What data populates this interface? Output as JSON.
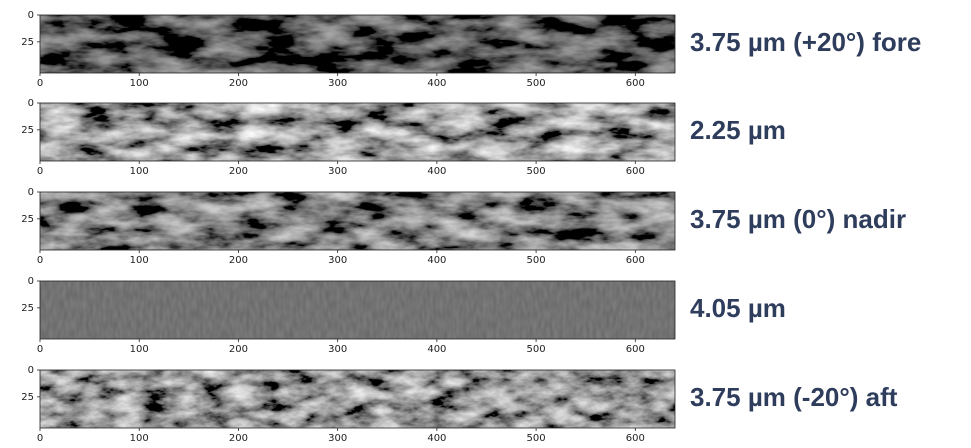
{
  "chart_data": [
    {
      "type": "image",
      "title": "3.75 µm (+20°) fore",
      "xlim": [
        0,
        640
      ],
      "ylim": [
        54,
        0
      ],
      "xticks": [
        0,
        100,
        200,
        300,
        400,
        500,
        600
      ],
      "yticks": [
        0,
        25
      ]
    },
    {
      "type": "image",
      "title": "2.25 µm",
      "xlim": [
        0,
        640
      ],
      "ylim": [
        54,
        0
      ],
      "xticks": [
        0,
        100,
        200,
        300,
        400,
        500,
        600
      ],
      "yticks": [
        0,
        25
      ]
    },
    {
      "type": "image",
      "title": "3.75 µm (0°) nadir",
      "xlim": [
        0,
        640
      ],
      "ylim": [
        54,
        0
      ],
      "xticks": [
        0,
        100,
        200,
        300,
        400,
        500,
        600
      ],
      "yticks": [
        0,
        25
      ]
    },
    {
      "type": "image",
      "title": "4.05 µm",
      "xlim": [
        0,
        640
      ],
      "ylim": [
        54,
        0
      ],
      "xticks": [
        0,
        100,
        200,
        300,
        400,
        500,
        600
      ],
      "yticks": [
        0,
        25
      ]
    },
    {
      "type": "image",
      "title": "3.75 µm (-20°) aft",
      "xlim": [
        0,
        640
      ],
      "ylim": [
        54,
        0
      ],
      "xticks": [
        0,
        100,
        200,
        300,
        400,
        500,
        600
      ],
      "yticks": [
        0,
        25
      ]
    }
  ]
}
